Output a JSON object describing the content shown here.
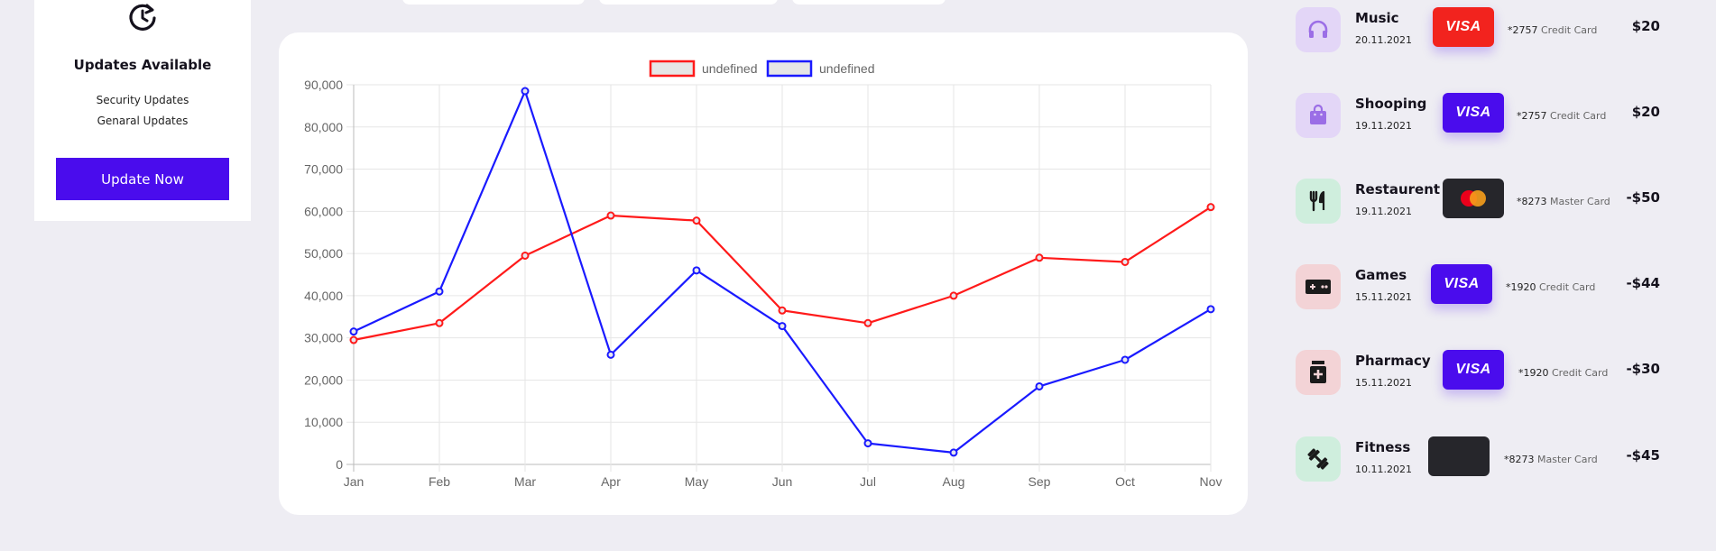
{
  "update_card": {
    "title": "Updates Available",
    "items": [
      "Security Updates",
      "Genaral Updates"
    ],
    "button_label": "Update Now"
  },
  "chart_data": {
    "type": "line",
    "categories": [
      "Jan",
      "Feb",
      "Mar",
      "Apr",
      "May",
      "Jun",
      "Jul",
      "Aug",
      "Sep",
      "Oct",
      "Nov"
    ],
    "series": [
      {
        "name": "undefined",
        "color": "#ff1a1a",
        "values": [
          29500,
          33500,
          49500,
          59000,
          57800,
          36500,
          33500,
          40000,
          49000,
          48000,
          61000
        ]
      },
      {
        "name": "undefined",
        "color": "#1a1aff",
        "values": [
          31500,
          41000,
          88500,
          26000,
          46000,
          32800,
          5000,
          2800,
          18500,
          24800,
          36800
        ]
      }
    ],
    "y_ticks": [
      "0",
      "10,000",
      "20,000",
      "30,000",
      "40,000",
      "50,000",
      "60,000",
      "70,000",
      "80,000",
      "90,000"
    ],
    "ylim": [
      0,
      90000
    ],
    "grid": true,
    "legend_position": "top-center"
  },
  "transactions": [
    {
      "name": "Music",
      "date": "20.11.2021",
      "icon": "headphones-icon",
      "icon_bg": "#e3d6f7",
      "icon_color": "#9b6ee6",
      "card_type": "visa",
      "card_color": "#f2231e",
      "card_label": "VISA",
      "card_num": "*2757",
      "card_kind": "Credit Card",
      "amount": "$20"
    },
    {
      "name": "Shooping",
      "date": "19.11.2021",
      "icon": "shopping-bag-icon",
      "icon_bg": "#e3d6f7",
      "icon_color": "#9b6ee6",
      "card_type": "visa",
      "card_color": "#4a0ced",
      "card_label": "VISA",
      "card_num": "*2757",
      "card_kind": "Credit Card",
      "amount": "$20"
    },
    {
      "name": "Restaurent",
      "date": "19.11.2021",
      "icon": "fork-knife-icon",
      "icon_bg": "#cfeedd",
      "icon_color": "#1b1b1b",
      "card_type": "mastercard",
      "card_color": "#26262b",
      "card_label": "",
      "card_num": "*8273",
      "card_kind": "Master Card",
      "amount": "-$50"
    },
    {
      "name": "Games",
      "date": "15.11.2021",
      "icon": "gamepad-icon",
      "icon_bg": "#f3d3d6",
      "icon_color": "#1b1b1b",
      "card_type": "visa",
      "card_color": "#4a0ced",
      "card_label": "VISA",
      "card_num": "*1920",
      "card_kind": "Credit Card",
      "amount": "-$44"
    },
    {
      "name": "Pharmacy",
      "date": "15.11.2021",
      "icon": "medicine-icon",
      "icon_bg": "#f3d3d6",
      "icon_color": "#1b1b1b",
      "card_type": "visa",
      "card_color": "#4a0ced",
      "card_label": "VISA",
      "card_num": "*1920",
      "card_kind": "Credit Card",
      "amount": "-$30"
    },
    {
      "name": "Fitness",
      "date": "10.11.2021",
      "icon": "dumbbell-icon",
      "icon_bg": "#cfeedd",
      "icon_color": "#1b1b1b",
      "card_type": "plain",
      "card_color": "#26262b",
      "card_label": "",
      "card_num": "*8273",
      "card_kind": "Master Card",
      "amount": "-$45"
    }
  ]
}
